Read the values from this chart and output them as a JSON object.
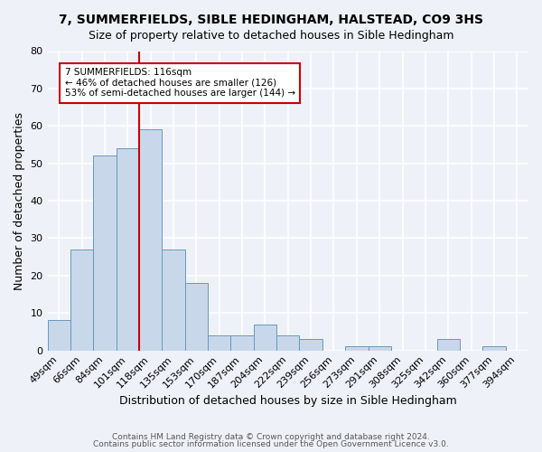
{
  "title": "7, SUMMERFIELDS, SIBLE HEDINGHAM, HALSTEAD, CO9 3HS",
  "subtitle": "Size of property relative to detached houses in Sible Hedingham",
  "xlabel": "Distribution of detached houses by size in Sible Hedingham",
  "ylabel": "Number of detached properties",
  "bar_color": "#c8d8ea",
  "bar_edge_color": "#6699bb",
  "background_color": "#eef2f8",
  "categories": [
    "49sqm",
    "66sqm",
    "84sqm",
    "101sqm",
    "118sqm",
    "135sqm",
    "153sqm",
    "170sqm",
    "187sqm",
    "204sqm",
    "222sqm",
    "239sqm",
    "256sqm",
    "273sqm",
    "291sqm",
    "308sqm",
    "325sqm",
    "342sqm",
    "360sqm",
    "377sqm",
    "394sqm"
  ],
  "values": [
    8,
    27,
    52,
    54,
    59,
    27,
    18,
    4,
    4,
    7,
    4,
    3,
    0,
    1,
    1,
    0,
    0,
    3,
    0,
    1,
    0
  ],
  "ylim": [
    0,
    80
  ],
  "yticks": [
    0,
    10,
    20,
    30,
    40,
    50,
    60,
    70,
    80
  ],
  "vline_idx": 3.5,
  "vline_color": "#cc0000",
  "annotation_line1": "7 SUMMERFIELDS: 116sqm",
  "annotation_line2": "← 46% of detached houses are smaller (126)",
  "annotation_line3": "53% of semi-detached houses are larger (144) →",
  "annotation_box_color": "#ffffff",
  "annotation_box_edge": "#cc0000",
  "footer1": "Contains HM Land Registry data © Crown copyright and database right 2024.",
  "footer2": "Contains public sector information licensed under the Open Government Licence v3.0."
}
